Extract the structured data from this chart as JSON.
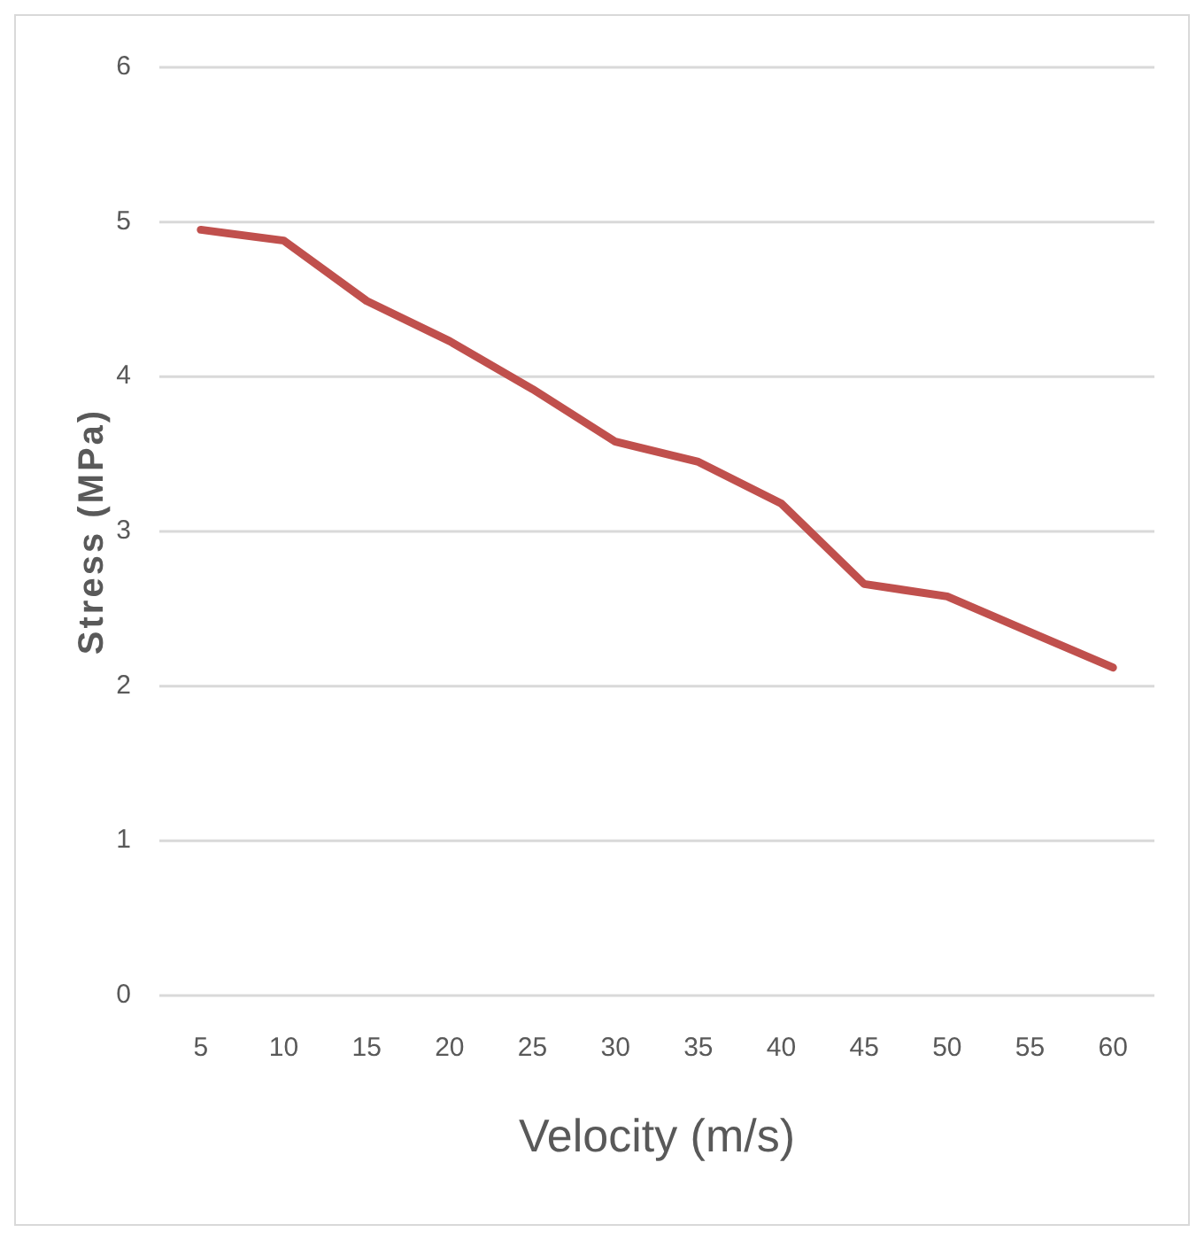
{
  "chart_data": {
    "type": "line",
    "xlabel": "Velocity (m/s)",
    "ylabel": "Stress (MPa)",
    "categories": [
      "5",
      "10",
      "15",
      "20",
      "25",
      "30",
      "35",
      "40",
      "45",
      "50",
      "55",
      "60"
    ],
    "series": [
      {
        "color": "#c0504d",
        "values": [
          4.95,
          4.88,
          4.49,
          4.23,
          3.92,
          3.58,
          3.45,
          3.18,
          2.66,
          2.58,
          2.35,
          2.12
        ]
      }
    ],
    "ylim": [
      0,
      6
    ],
    "yticks": [
      0,
      1,
      2,
      3,
      4,
      5,
      6
    ],
    "grid": "y",
    "marker": "none",
    "line_style": "solid"
  }
}
